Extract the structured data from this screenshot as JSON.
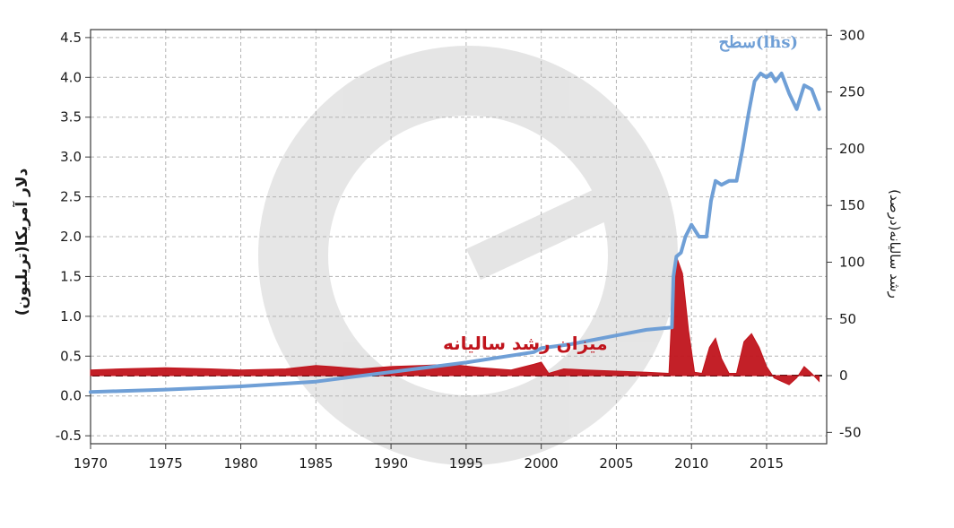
{
  "chart_data": {
    "type": "line",
    "xlim": [
      1970,
      2019
    ],
    "xticks": [
      "1970",
      "1975",
      "1980",
      "1985",
      "1990",
      "1995",
      "2000",
      "2005",
      "2010",
      "2015"
    ],
    "ylim_left": [
      -0.6,
      4.6
    ],
    "yticks_left": [
      "4.5",
      "4.0",
      "3.5",
      "3.0",
      "2.5",
      "2.0",
      "1.5",
      "1.0",
      "0.5",
      "0.0",
      "-0.5"
    ],
    "ylim_right": [
      -60,
      305
    ],
    "yticks_right": [
      "300",
      "250",
      "200",
      "150",
      "100",
      "50",
      "0",
      "-50"
    ],
    "ylabel_left": "دلار آمریکا(تریلیون)",
    "ylabel_right": "رشد سالیانه(درصد)",
    "grid": true,
    "series": [
      {
        "name": "سطح(lhs)",
        "axis": "left",
        "color": "#6f9fd6",
        "x": [
          1970,
          1975,
          1980,
          1985,
          1990,
          1995,
          1999.5,
          2000,
          2002,
          2005,
          2007,
          2008.7,
          2008.8,
          2009,
          2009.3,
          2009.6,
          2010,
          2010.5,
          2011,
          2011.3,
          2011.6,
          2012,
          2012.5,
          2013,
          2013.4,
          2013.8,
          2014.2,
          2014.6,
          2015,
          2015.3,
          2015.6,
          2016,
          2016.5,
          2017,
          2017.5,
          2018,
          2018.5
        ],
        "y": [
          0.05,
          0.08,
          0.12,
          0.18,
          0.3,
          0.42,
          0.55,
          0.6,
          0.65,
          0.76,
          0.83,
          0.86,
          1.5,
          1.75,
          1.8,
          2.0,
          2.15,
          2.0,
          2.0,
          2.45,
          2.7,
          2.65,
          2.7,
          2.7,
          3.1,
          3.55,
          3.95,
          4.05,
          4.0,
          4.05,
          3.95,
          4.05,
          3.8,
          3.6,
          3.9,
          3.85,
          3.6
        ]
      },
      {
        "name": "میزان رشد سالیانه",
        "axis": "right",
        "color": "#c0141c",
        "x": [
          1970,
          1972,
          1975,
          1978,
          1980,
          1983,
          1985,
          1986,
          1988,
          1990,
          1992,
          1994,
          1996,
          1998,
          1999.5,
          2000,
          2000.5,
          2001.5,
          2003,
          2005,
          2007,
          2008.5,
          2008.8,
          2009,
          2009.4,
          2009.8,
          2010.2,
          2010.7,
          2011.2,
          2011.6,
          2012,
          2012.5,
          2013,
          2013.5,
          2014,
          2014.5,
          2015,
          2015.5,
          2016,
          2016.5,
          2017,
          2017.5,
          2018,
          2018.5
        ],
        "y": [
          5,
          6,
          7,
          6,
          5,
          6,
          9,
          8,
          6,
          8,
          9,
          10,
          7,
          5,
          10,
          12,
          2,
          6,
          5,
          4,
          3,
          2,
          85,
          105,
          90,
          40,
          3,
          2,
          25,
          33,
          15,
          2,
          2,
          30,
          37,
          25,
          8,
          -2,
          -5,
          -8,
          -2,
          8,
          2,
          -5
        ]
      }
    ]
  }
}
